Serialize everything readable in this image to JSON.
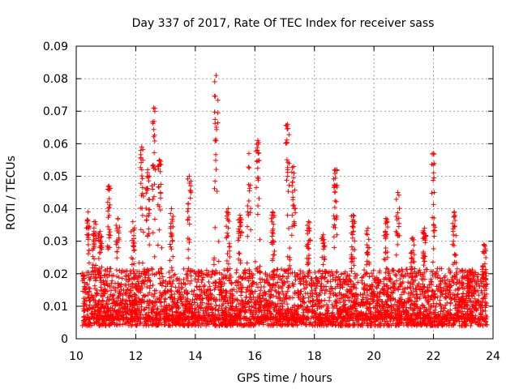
{
  "chart_data": {
    "type": "scatter",
    "title": "Day 337 of 2017, Rate Of TEC Index for receiver sass",
    "xlabel": "GPS time / hours",
    "ylabel": "ROTI / TECUs",
    "xlim": [
      10,
      24
    ],
    "ylim": [
      0,
      0.09
    ],
    "grid": true,
    "marker": "+",
    "marker_color": "#ff0000",
    "x_ticks": [
      10,
      12,
      14,
      16,
      18,
      20,
      22,
      24
    ],
    "x_tick_labels": [
      "10",
      "12",
      "14",
      "16",
      "18",
      "20",
      "22",
      "24"
    ],
    "y_ticks": [
      0,
      0.01,
      0.02,
      0.03,
      0.04,
      0.05,
      0.06,
      0.07,
      0.08,
      0.09
    ],
    "y_tick_labels": [
      "0",
      "0.01",
      "0.02",
      "0.03",
      "0.04",
      "0.05",
      "0.06",
      "0.07",
      "0.08",
      "0.09"
    ],
    "data_span_hours": [
      10.2,
      23.8
    ],
    "baseline_band": [
      0.004,
      0.02
    ],
    "peaks": [
      {
        "x": 10.4,
        "y": 0.039
      },
      {
        "x": 10.6,
        "y": 0.036
      },
      {
        "x": 10.8,
        "y": 0.033
      },
      {
        "x": 11.1,
        "y": 0.047
      },
      {
        "x": 11.4,
        "y": 0.037
      },
      {
        "x": 11.9,
        "y": 0.036
      },
      {
        "x": 12.2,
        "y": 0.059
      },
      {
        "x": 12.4,
        "y": 0.052
      },
      {
        "x": 12.6,
        "y": 0.071
      },
      {
        "x": 12.8,
        "y": 0.055
      },
      {
        "x": 13.2,
        "y": 0.04
      },
      {
        "x": 13.8,
        "y": 0.05
      },
      {
        "x": 14.7,
        "y": 0.081
      },
      {
        "x": 15.1,
        "y": 0.04
      },
      {
        "x": 15.5,
        "y": 0.038
      },
      {
        "x": 15.8,
        "y": 0.057
      },
      {
        "x": 16.1,
        "y": 0.061
      },
      {
        "x": 16.6,
        "y": 0.039
      },
      {
        "x": 17.1,
        "y": 0.066
      },
      {
        "x": 17.3,
        "y": 0.053
      },
      {
        "x": 17.8,
        "y": 0.036
      },
      {
        "x": 18.3,
        "y": 0.032
      },
      {
        "x": 18.7,
        "y": 0.052
      },
      {
        "x": 19.3,
        "y": 0.038
      },
      {
        "x": 19.8,
        "y": 0.034
      },
      {
        "x": 20.4,
        "y": 0.037
      },
      {
        "x": 20.8,
        "y": 0.045
      },
      {
        "x": 21.3,
        "y": 0.031
      },
      {
        "x": 21.7,
        "y": 0.034
      },
      {
        "x": 22.0,
        "y": 0.057
      },
      {
        "x": 22.7,
        "y": 0.039
      },
      {
        "x": 23.2,
        "y": 0.021
      },
      {
        "x": 23.7,
        "y": 0.029
      }
    ]
  }
}
